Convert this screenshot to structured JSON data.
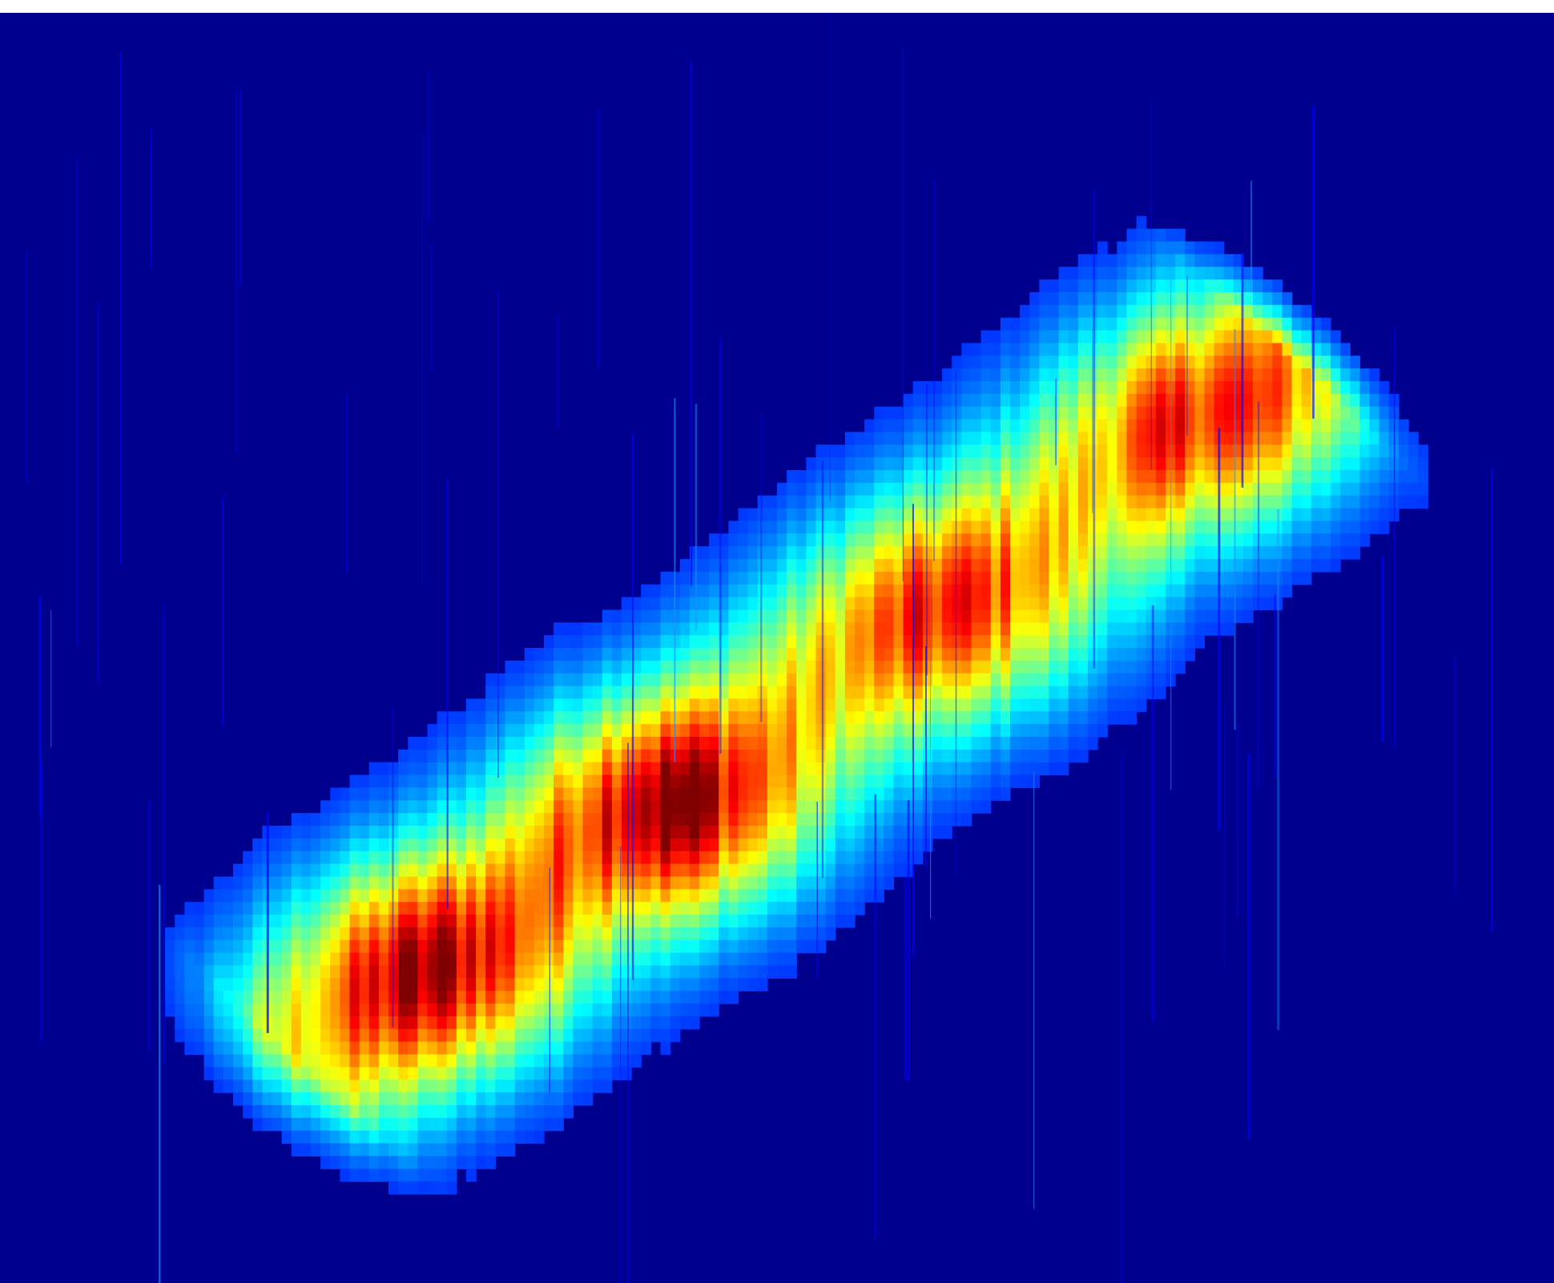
{
  "chart_data": {
    "type": "heatmap",
    "title": "",
    "xlabel": "",
    "ylabel": "",
    "grid": false,
    "legend": "none",
    "colormap": "jet",
    "background_value": 0,
    "value_range": [
      0,
      1
    ],
    "x_range": [
      0,
      1
    ],
    "y_range": [
      0,
      1
    ],
    "band": {
      "axis_angle_deg": 36,
      "lower_left": [
        0.18,
        0.16
      ],
      "upper_right": [
        0.85,
        0.75
      ],
      "half_width": 0.16
    },
    "peaks": [
      {
        "name": "",
        "x": 0.275,
        "y": 0.25,
        "intensity": 0.82
      },
      {
        "name": "",
        "x": 0.435,
        "y": 0.37,
        "intensity": 0.92
      },
      {
        "name": "",
        "x": 0.62,
        "y": 0.52,
        "intensity": 0.6
      },
      {
        "name": "",
        "x": 0.78,
        "y": 0.68,
        "intensity": 0.62
      }
    ],
    "streak_noise": true
  },
  "colors": {
    "background": "#00008f",
    "low": "#0000ff",
    "mid_low": "#00ffff",
    "mid": "#ffff00",
    "mid_high": "#ff8000",
    "high": "#ff0000"
  }
}
